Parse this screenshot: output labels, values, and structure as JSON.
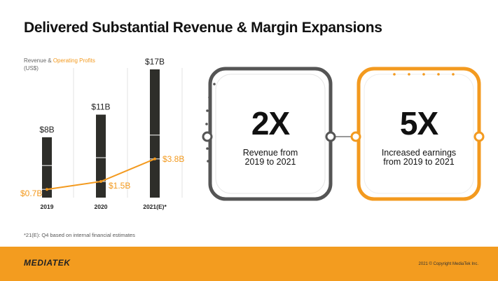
{
  "title": "Delivered Substantial Revenue & Margin Expansions",
  "legend": {
    "prefix": "Revenue & ",
    "highlight": "Operating Profits",
    "unit": "(US$)"
  },
  "chart_data": {
    "type": "bar",
    "categories": [
      "2019",
      "2020",
      "2021(E)*"
    ],
    "series": [
      {
        "name": "Revenue",
        "values": [
          8,
          11,
          17
        ],
        "labels": [
          "$8B",
          "$11B",
          "$17B"
        ],
        "color": "#2e2e2a"
      },
      {
        "name": "Operating Profits",
        "type": "line",
        "values": [
          0.7,
          1.5,
          3.8
        ],
        "labels": [
          "$0.7B",
          "$1.5B",
          "$3.8B"
        ],
        "color": "#f39a1f"
      }
    ],
    "ylim": [
      0,
      17
    ],
    "xlabel": "",
    "ylabel": "US$"
  },
  "metrics": [
    {
      "value": "2X",
      "line1": "Revenue from",
      "line2": "2019 to 2021"
    },
    {
      "value": "5X",
      "line1": "Increased earnings",
      "line2": "from 2019 to 2021"
    }
  ],
  "footnote": "*21(E): Q4 based on internal financial estimates",
  "footer": {
    "logo": "MEDIATEK",
    "copyright": "2021 © Copyright MediaTek Inc."
  },
  "colors": {
    "accent": "#f39a1f",
    "dark": "#2e2e2a",
    "box_dark": "#555555"
  }
}
